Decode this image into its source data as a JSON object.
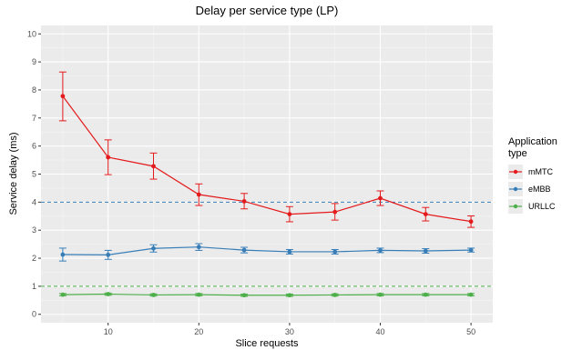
{
  "chart_data": {
    "type": "line",
    "title": "Delay per service type (LP)",
    "xlabel": "Slice requests",
    "ylabel": "Service delay (ms)",
    "x": [
      5,
      10,
      15,
      20,
      25,
      30,
      35,
      40,
      45,
      50
    ],
    "xlim": [
      2.6,
      52.4
    ],
    "ylim": [
      -0.3,
      10.3
    ],
    "x_ticks": [
      10,
      20,
      30,
      40,
      50
    ],
    "y_ticks": [
      0,
      1,
      2,
      3,
      4,
      5,
      6,
      7,
      8,
      9,
      10
    ],
    "grid": true,
    "legend": {
      "title": "Application type",
      "position": "right"
    },
    "series": [
      {
        "name": "mMTC",
        "color": "#e41a1c",
        "values": [
          7.78,
          5.6,
          5.28,
          4.27,
          4.03,
          3.57,
          3.65,
          4.14,
          3.57,
          3.31
        ],
        "error_low": [
          6.9,
          4.98,
          4.82,
          3.88,
          3.76,
          3.3,
          3.36,
          3.88,
          3.33,
          3.1
        ],
        "error_high": [
          8.64,
          6.22,
          5.75,
          4.65,
          4.31,
          3.84,
          3.95,
          4.4,
          3.81,
          3.51
        ]
      },
      {
        "name": "eMBB",
        "color": "#377eb8",
        "values": [
          2.13,
          2.12,
          2.35,
          2.4,
          2.29,
          2.23,
          2.23,
          2.28,
          2.26,
          2.29
        ],
        "error_low": [
          1.9,
          1.96,
          2.22,
          2.28,
          2.19,
          2.15,
          2.15,
          2.2,
          2.18,
          2.22
        ],
        "error_high": [
          2.36,
          2.28,
          2.48,
          2.52,
          2.39,
          2.31,
          2.31,
          2.36,
          2.34,
          2.36
        ]
      },
      {
        "name": "URLLC",
        "color": "#4daf4a",
        "values": [
          0.7,
          0.72,
          0.69,
          0.7,
          0.68,
          0.68,
          0.69,
          0.7,
          0.7,
          0.7
        ],
        "error_low": [
          0.66,
          0.68,
          0.65,
          0.66,
          0.64,
          0.64,
          0.65,
          0.66,
          0.66,
          0.66
        ],
        "error_high": [
          0.74,
          0.76,
          0.73,
          0.74,
          0.72,
          0.72,
          0.73,
          0.74,
          0.74,
          0.74
        ]
      }
    ],
    "reference_lines": [
      {
        "y": 4,
        "color": "#377eb8",
        "style": "dashed"
      },
      {
        "y": 1,
        "color": "#4daf4a",
        "style": "dashed"
      }
    ]
  }
}
